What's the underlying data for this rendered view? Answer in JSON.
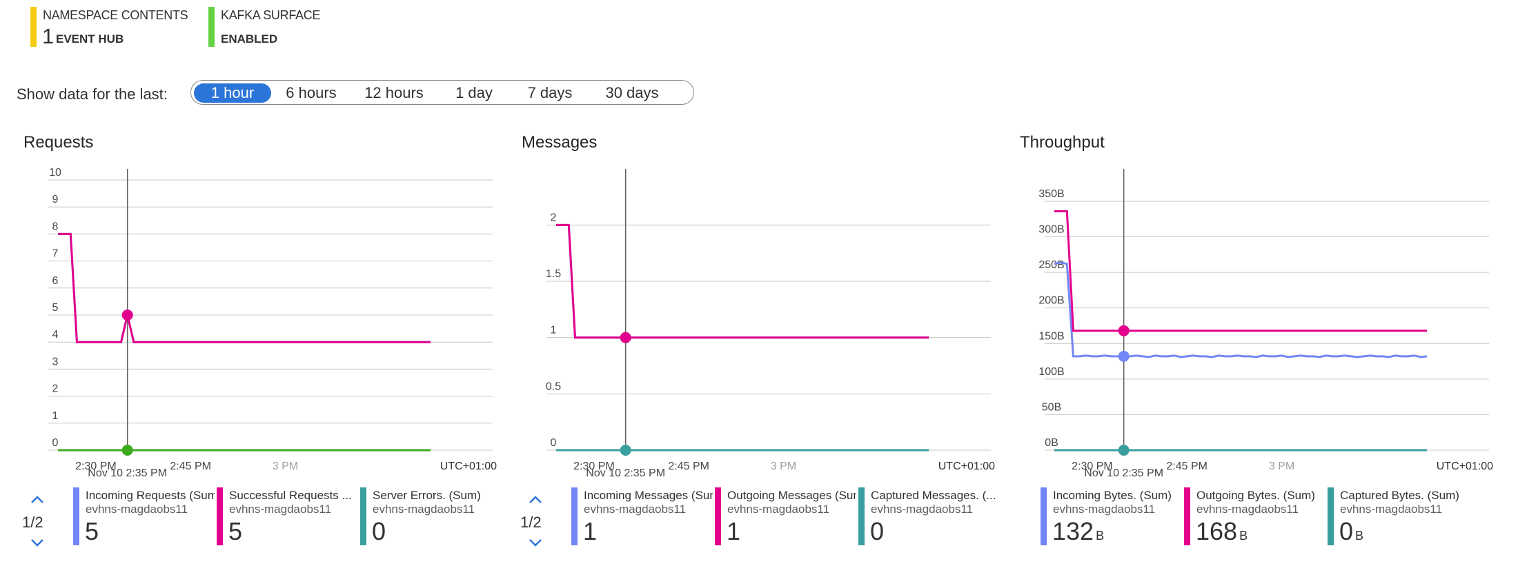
{
  "summary": {
    "namespace_contents": {
      "label": "NAMESPACE CONTENTS",
      "value": "1",
      "unit": "EVENT HUB",
      "color": "#f4cc14"
    },
    "kafka_surface": {
      "label": "KAFKA SURFACE",
      "value": "ENABLED",
      "color": "#67d145"
    }
  },
  "time_range": {
    "label": "Show data for the last:",
    "options": [
      "1 hour",
      "6 hours",
      "12 hours",
      "1 day",
      "7 days",
      "30 days"
    ],
    "selected": "1 hour"
  },
  "colors": {
    "pink": "#e3008c",
    "green": "#3cab1e",
    "purple": "#8c7bd1",
    "blue": "#7287f5",
    "teal": "#3a9e9e",
    "accent": "#2b74d8"
  },
  "chart_data": [
    {
      "type": "line",
      "title": "Requests",
      "x": [
        "2:24 PM",
        "2:25 PM",
        "2:26 PM",
        "2:27 PM",
        "2:28 PM",
        "2:29 PM",
        "2:30 PM",
        "2:31 PM",
        "2:32 PM",
        "2:33 PM",
        "2:34 PM",
        "2:35 PM",
        "2:36 PM",
        "2:37 PM",
        "2:38 PM",
        "2:39 PM",
        "2:40 PM",
        "2:41 PM",
        "2:42 PM",
        "2:43 PM",
        "2:44 PM",
        "2:45 PM",
        "2:46 PM",
        "2:47 PM",
        "2:48 PM",
        "2:49 PM",
        "2:50 PM",
        "2:51 PM",
        "2:52 PM",
        "2:53 PM",
        "2:54 PM",
        "2:55 PM",
        "2:56 PM",
        "2:57 PM",
        "2:58 PM",
        "2:59 PM",
        "3:00 PM",
        "3:01 PM",
        "3:02 PM",
        "3:03 PM",
        "3:04 PM",
        "3:05 PM",
        "3:06 PM",
        "3:07 PM",
        "3:08 PM",
        "3:09 PM",
        "3:10 PM",
        "3:11 PM",
        "3:12 PM",
        "3:13 PM",
        "3:14 PM",
        "3:15 PM",
        "3:16 PM",
        "3:17 PM",
        "3:18 PM",
        "3:19 PM",
        "3:20 PM",
        "3:21 PM",
        "3:22 PM",
        "3:23 PM"
      ],
      "xticks": [
        "2:30 PM",
        "2:45 PM",
        "3 PM"
      ],
      "yticks": [
        "0",
        "1",
        "2",
        "3",
        "4",
        "5",
        "6",
        "7",
        "8",
        "9",
        "10"
      ],
      "ylim": [
        0,
        10
      ],
      "cursor_label": "Nov 10 2:35 PM",
      "timezone": "UTC+01:00",
      "series": [
        {
          "name": "Incoming Requests (Sum)",
          "source": "evhns-magdaobs11",
          "color": "#7287f5",
          "display": "5",
          "values": [
            8,
            8,
            8,
            4,
            4,
            4,
            4,
            4,
            4,
            4,
            4,
            5,
            4,
            4,
            4,
            4,
            4,
            4,
            4,
            4,
            4,
            4,
            4,
            4,
            4,
            4,
            4,
            4,
            4,
            4,
            4,
            4,
            4,
            4,
            4,
            4,
            4,
            4,
            4,
            4,
            4,
            4,
            4,
            4,
            4,
            4,
            4,
            4,
            4,
            4,
            4,
            4,
            4,
            4,
            4,
            4,
            4,
            4,
            4,
            4
          ]
        },
        {
          "name": "Successful Requests (Sum)",
          "legend_label": "Successful Requests ...",
          "source": "evhns-magdaobs11",
          "color": "#e3008c",
          "display": "5",
          "values": [
            8,
            8,
            8,
            4,
            4,
            4,
            4,
            4,
            4,
            4,
            4,
            5,
            4,
            4,
            4,
            4,
            4,
            4,
            4,
            4,
            4,
            4,
            4,
            4,
            4,
            4,
            4,
            4,
            4,
            4,
            4,
            4,
            4,
            4,
            4,
            4,
            4,
            4,
            4,
            4,
            4,
            4,
            4,
            4,
            4,
            4,
            4,
            4,
            4,
            4,
            4,
            4,
            4,
            4,
            4,
            4,
            4,
            4,
            4,
            4
          ]
        },
        {
          "name": "Server Errors. (Sum)",
          "source": "evhns-magdaobs11",
          "color": "#3a9e9e",
          "display": "0",
          "values": [
            0,
            0,
            0,
            0,
            0,
            0,
            0,
            0,
            0,
            0,
            0,
            0,
            0,
            0,
            0,
            0,
            0,
            0,
            0,
            0,
            0,
            0,
            0,
            0,
            0,
            0,
            0,
            0,
            0,
            0,
            0,
            0,
            0,
            0,
            0,
            0,
            0,
            0,
            0,
            0,
            0,
            0,
            0,
            0,
            0,
            0,
            0,
            0,
            0,
            0,
            0,
            0,
            0,
            0,
            0,
            0,
            0,
            0,
            0,
            0
          ]
        }
      ],
      "legend_page": "1/2"
    },
    {
      "type": "line",
      "title": "Messages",
      "x": [
        "2:24 PM",
        "2:25 PM",
        "2:26 PM",
        "2:27 PM",
        "2:28 PM",
        "2:29 PM",
        "2:30 PM",
        "2:31 PM",
        "2:32 PM",
        "2:33 PM",
        "2:34 PM",
        "2:35 PM",
        "2:36 PM",
        "2:37 PM",
        "2:38 PM",
        "2:39 PM",
        "2:40 PM",
        "2:41 PM",
        "2:42 PM",
        "2:43 PM",
        "2:44 PM",
        "2:45 PM",
        "2:46 PM",
        "2:47 PM",
        "2:48 PM",
        "2:49 PM",
        "2:50 PM",
        "2:51 PM",
        "2:52 PM",
        "2:53 PM",
        "2:54 PM",
        "2:55 PM",
        "2:56 PM",
        "2:57 PM",
        "2:58 PM",
        "2:59 PM",
        "3:00 PM",
        "3:01 PM",
        "3:02 PM",
        "3:03 PM",
        "3:04 PM",
        "3:05 PM",
        "3:06 PM",
        "3:07 PM",
        "3:08 PM",
        "3:09 PM",
        "3:10 PM",
        "3:11 PM",
        "3:12 PM",
        "3:13 PM",
        "3:14 PM",
        "3:15 PM",
        "3:16 PM",
        "3:17 PM",
        "3:18 PM",
        "3:19 PM",
        "3:20 PM",
        "3:21 PM",
        "3:22 PM",
        "3:23 PM"
      ],
      "xticks": [
        "2:30 PM",
        "2:45 PM",
        "3 PM"
      ],
      "yticks": [
        "0",
        "0.5",
        "1",
        "1.5",
        "2"
      ],
      "ylim": [
        0,
        2.4
      ],
      "cursor_label": "Nov 10 2:35 PM",
      "timezone": "UTC+01:00",
      "series": [
        {
          "name": "Incoming Messages (Sum)",
          "legend_label": "Incoming Messages (Sum",
          "source": "evhns-magdaobs11",
          "color": "#7287f5",
          "display": "1",
          "values": [
            2,
            2,
            2,
            1,
            1,
            1,
            1,
            1,
            1,
            1,
            1,
            1,
            1,
            1,
            1,
            1,
            1,
            1,
            1,
            1,
            1,
            1,
            1,
            1,
            1,
            1,
            1,
            1,
            1,
            1,
            1,
            1,
            1,
            1,
            1,
            1,
            1,
            1,
            1,
            1,
            1,
            1,
            1,
            1,
            1,
            1,
            1,
            1,
            1,
            1,
            1,
            1,
            1,
            1,
            1,
            1,
            1,
            1,
            1,
            1
          ]
        },
        {
          "name": "Outgoing Messages (Sum)",
          "legend_label": "Outgoing Messages (Sum",
          "source": "evhns-magdaobs11",
          "color": "#e3008c",
          "display": "1",
          "values": [
            2,
            2,
            2,
            1,
            1,
            1,
            1,
            1,
            1,
            1,
            1,
            1,
            1,
            1,
            1,
            1,
            1,
            1,
            1,
            1,
            1,
            1,
            1,
            1,
            1,
            1,
            1,
            1,
            1,
            1,
            1,
            1,
            1,
            1,
            1,
            1,
            1,
            1,
            1,
            1,
            1,
            1,
            1,
            1,
            1,
            1,
            1,
            1,
            1,
            1,
            1,
            1,
            1,
            1,
            1,
            1,
            1,
            1,
            1,
            1
          ]
        },
        {
          "name": "Captured Messages. (Sum)",
          "legend_label": "Captured Messages. (...",
          "source": "evhns-magdaobs11",
          "color": "#3a9e9e",
          "display": "0",
          "values": [
            0,
            0,
            0,
            0,
            0,
            0,
            0,
            0,
            0,
            0,
            0,
            0,
            0,
            0,
            0,
            0,
            0,
            0,
            0,
            0,
            0,
            0,
            0,
            0,
            0,
            0,
            0,
            0,
            0,
            0,
            0,
            0,
            0,
            0,
            0,
            0,
            0,
            0,
            0,
            0,
            0,
            0,
            0,
            0,
            0,
            0,
            0,
            0,
            0,
            0,
            0,
            0,
            0,
            0,
            0,
            0,
            0,
            0,
            0,
            0
          ]
        }
      ],
      "legend_page": "1/2"
    },
    {
      "type": "line",
      "title": "Throughput",
      "x": [
        "2:24 PM",
        "2:25 PM",
        "2:26 PM",
        "2:27 PM",
        "2:28 PM",
        "2:29 PM",
        "2:30 PM",
        "2:31 PM",
        "2:32 PM",
        "2:33 PM",
        "2:34 PM",
        "2:35 PM",
        "2:36 PM",
        "2:37 PM",
        "2:38 PM",
        "2:39 PM",
        "2:40 PM",
        "2:41 PM",
        "2:42 PM",
        "2:43 PM",
        "2:44 PM",
        "2:45 PM",
        "2:46 PM",
        "2:47 PM",
        "2:48 PM",
        "2:49 PM",
        "2:50 PM",
        "2:51 PM",
        "2:52 PM",
        "2:53 PM",
        "2:54 PM",
        "2:55 PM",
        "2:56 PM",
        "2:57 PM",
        "2:58 PM",
        "2:59 PM",
        "3:00 PM",
        "3:01 PM",
        "3:02 PM",
        "3:03 PM",
        "3:04 PM",
        "3:05 PM",
        "3:06 PM",
        "3:07 PM",
        "3:08 PM",
        "3:09 PM",
        "3:10 PM",
        "3:11 PM",
        "3:12 PM",
        "3:13 PM",
        "3:14 PM",
        "3:15 PM",
        "3:16 PM",
        "3:17 PM",
        "3:18 PM",
        "3:19 PM",
        "3:20 PM",
        "3:21 PM",
        "3:22 PM",
        "3:23 PM"
      ],
      "xticks": [
        "2:30 PM",
        "2:45 PM",
        "3 PM"
      ],
      "yticks": [
        "0B",
        "50B",
        "100B",
        "150B",
        "200B",
        "250B",
        "300B",
        "350B"
      ],
      "ylim": [
        0,
        380
      ],
      "cursor_label": "Nov 10 2:35 PM",
      "timezone": "UTC+01:00",
      "series": [
        {
          "name": "Incoming Bytes. (Sum)",
          "source": "evhns-magdaobs11",
          "color": "#7287f5",
          "display": "132",
          "unit": "B",
          "values": [
            262,
            264,
            262,
            132,
            132,
            133,
            132,
            132,
            133,
            132,
            132,
            132,
            132,
            133,
            132,
            131,
            133,
            132,
            132,
            133,
            131,
            132,
            133,
            132,
            132,
            131,
            133,
            132,
            132,
            133,
            132,
            132,
            131,
            133,
            132,
            132,
            133,
            131,
            132,
            133,
            132,
            132,
            131,
            133,
            132,
            132,
            133,
            132,
            131,
            132,
            133,
            132,
            132,
            131,
            133,
            132,
            132,
            133,
            131,
            132
          ]
        },
        {
          "name": "Outgoing Bytes. (Sum)",
          "source": "evhns-magdaobs11",
          "color": "#e3008c",
          "display": "168",
          "unit": "B",
          "values": [
            336,
            336,
            336,
            168,
            168,
            168,
            168,
            168,
            168,
            168,
            168,
            168,
            168,
            168,
            168,
            168,
            168,
            168,
            168,
            168,
            168,
            168,
            168,
            168,
            168,
            168,
            168,
            168,
            168,
            168,
            168,
            168,
            168,
            168,
            168,
            168,
            168,
            168,
            168,
            168,
            168,
            168,
            168,
            168,
            168,
            168,
            168,
            168,
            168,
            168,
            168,
            168,
            168,
            168,
            168,
            168,
            168,
            168,
            168,
            168
          ]
        },
        {
          "name": "Captured Bytes. (Sum)",
          "source": "evhns-magdaobs11",
          "color": "#3a9e9e",
          "display": "0",
          "unit": "B",
          "values": [
            0,
            0,
            0,
            0,
            0,
            0,
            0,
            0,
            0,
            0,
            0,
            0,
            0,
            0,
            0,
            0,
            0,
            0,
            0,
            0,
            0,
            0,
            0,
            0,
            0,
            0,
            0,
            0,
            0,
            0,
            0,
            0,
            0,
            0,
            0,
            0,
            0,
            0,
            0,
            0,
            0,
            0,
            0,
            0,
            0,
            0,
            0,
            0,
            0,
            0,
            0,
            0,
            0,
            0,
            0,
            0,
            0,
            0,
            0,
            0
          ]
        }
      ]
    }
  ]
}
